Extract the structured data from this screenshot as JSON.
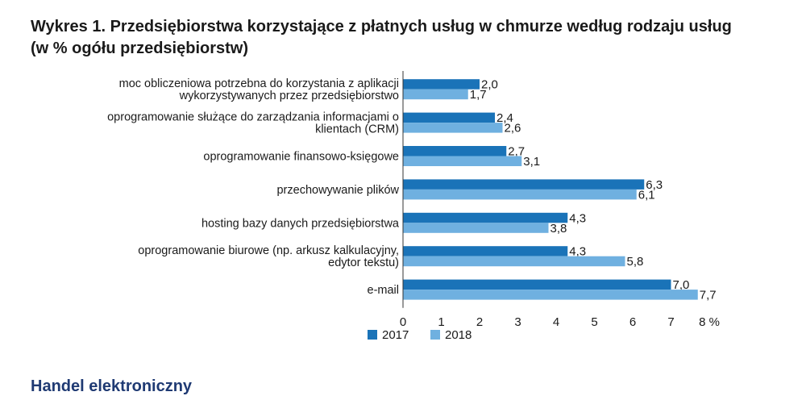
{
  "chart_data": {
    "type": "bar",
    "orientation": "horizontal",
    "title_line1": "Wykres 1. Przedsiębiorstwa korzystające z płatnych usług w chmurze według rodzaju usług",
    "title_line2": "(w % ogółu przedsiębiorstw)",
    "categories": [
      [
        "moc obliczeniowa potrzebna do korzystania z aplikacji",
        "wykorzystywanych przez przedsiębiorstwo"
      ],
      [
        "oprogramowanie służące do zarządzania informacjami o",
        "klientach (CRM)"
      ],
      [
        "oprogramowanie finansowo-księgowe"
      ],
      [
        "przechowywanie plików"
      ],
      [
        "hosting bazy danych przedsiębiorstwa"
      ],
      [
        "oprogramowanie biurowe (np. arkusz kalkulacyjny,",
        "edytor tekstu)"
      ],
      [
        "e-mail"
      ]
    ],
    "series": [
      {
        "name": "2017",
        "color": "#1a73b8",
        "values": [
          2.0,
          2.4,
          2.7,
          6.3,
          4.3,
          4.3,
          7.0
        ],
        "labels": [
          "2,0",
          "2,4",
          "2,7",
          "6,3",
          "4,3",
          "4,3",
          "7,0"
        ]
      },
      {
        "name": "2018",
        "color": "#6fb0e0",
        "values": [
          1.7,
          2.6,
          3.1,
          6.1,
          3.8,
          5.8,
          7.7
        ],
        "labels": [
          "1,7",
          "2,6",
          "3,1",
          "6,1",
          "3,8",
          "5,8",
          "7,7"
        ]
      }
    ],
    "xlim": [
      0,
      8
    ],
    "xticks": [
      {
        "value": 0,
        "label": "0"
      },
      {
        "value": 1,
        "label": "1"
      },
      {
        "value": 2,
        "label": "2"
      },
      {
        "value": 3,
        "label": "3"
      },
      {
        "value": 4,
        "label": "4"
      },
      {
        "value": 5,
        "label": "5"
      },
      {
        "value": 6,
        "label": "6"
      },
      {
        "value": 7,
        "label": "7"
      },
      {
        "value": 8,
        "label": "8 %"
      }
    ],
    "legend_placement": "bottom-left",
    "grid": false
  },
  "next_section_heading": "Handel elektroniczny"
}
